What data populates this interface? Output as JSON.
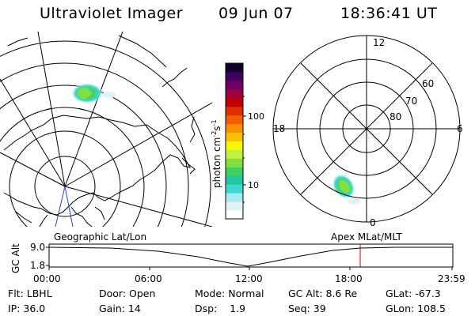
{
  "header": {
    "title": "Ultraviolet Imager",
    "date": "09 Jun 07",
    "time": "18:36:41 UT"
  },
  "colorbar": {
    "label": "photon cm⁻²s⁻¹",
    "label_base": "photon cm",
    "label_sup1": "-2",
    "label_mid": "s",
    "label_sup2": "-1",
    "tick_100": "100",
    "tick_10": "10",
    "colors": [
      "#ffffff",
      "#e0f4f8",
      "#a8e8f0",
      "#40d8d0",
      "#20c8a0",
      "#40d060",
      "#80e040",
      "#c0f040",
      "#f8f800",
      "#f8c000",
      "#f89000",
      "#f06000",
      "#e03000",
      "#c00000",
      "#a00040",
      "#700060",
      "#400060",
      "#100030"
    ]
  },
  "polar_plot": {
    "labels": {
      "top": "12",
      "bottom": "0",
      "left": "18",
      "right": "6",
      "lat60": "60",
      "lat70": "70",
      "lat80": "80"
    }
  },
  "map_plot": {
    "name": "geographic"
  },
  "timeline": {
    "left_label": "Geographic Lat/Lon",
    "right_label": "Apex  MLat/MLT",
    "axis_title": "GC Alt",
    "y_top": "9.0",
    "y_bottom": "1.8",
    "ticks": [
      "00:00",
      "06:00",
      "12:00",
      "18:00",
      "23:59"
    ]
  },
  "info": {
    "row1": [
      {
        "k": "flt",
        "text": "Flt: LBHL"
      },
      {
        "k": "door",
        "text": "Door: Open"
      },
      {
        "k": "mode",
        "text": "Mode: Normal"
      },
      {
        "k": "gcalt",
        "text": "GC Alt: 8.6 Re"
      },
      {
        "k": "glat",
        "text": "GLat: -67.3"
      }
    ],
    "row2": [
      {
        "k": "ip",
        "text": "IP: 36.0"
      },
      {
        "k": "gain",
        "text": "Gain: 14"
      },
      {
        "k": "dsp",
        "text": "Dsp:    1.9"
      },
      {
        "k": "seq",
        "text": "Seq: 39"
      },
      {
        "k": "glon",
        "text": "GLon: 108.5"
      }
    ]
  }
}
